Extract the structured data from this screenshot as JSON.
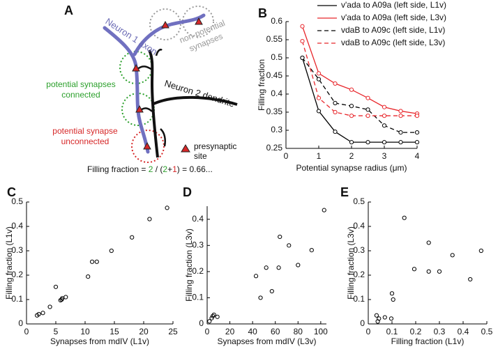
{
  "diagram": {
    "panel": "A",
    "neuron1": "Neuron 1 axon",
    "neuron2": "Neuron 2 dendrite",
    "non_potential": [
      "non-potential",
      "synapses"
    ],
    "potential_connected": [
      "potential synapses",
      "connected"
    ],
    "potential_unconnected": [
      "potential synapse",
      "unconnected"
    ],
    "presynaptic": [
      "presynaptic",
      "site"
    ],
    "formula": [
      {
        "text": "Filling fraction = "
      },
      {
        "text": "2",
        "color": "#2ca02c"
      },
      {
        "text": " / ("
      },
      {
        "text": "2",
        "color": "#2ca02c"
      },
      {
        "text": "+"
      },
      {
        "text": "1",
        "color": "#d62728"
      },
      {
        "text": ") = 0.66..."
      }
    ]
  },
  "chart_data": [
    {
      "type": "line",
      "panel": "B",
      "ylabel": "Filling fraction",
      "xlabel": "Potential synapse radius (μm)",
      "x": [
        0.5,
        1,
        1.5,
        2,
        2.5,
        3,
        3.5,
        4
      ],
      "series": [
        {
          "name": "v'ada to A09a (left side, L1v)",
          "color": "#000000",
          "dashed": false,
          "values": [
            0.5,
            0.353,
            0.296,
            0.267,
            0.267,
            0.267,
            0.267,
            0.267
          ]
        },
        {
          "name": "v'ada to A09a (left side, L3v)",
          "color": "#e8262b",
          "dashed": false,
          "values": [
            0.587,
            0.457,
            0.429,
            0.412,
            0.389,
            0.364,
            0.353,
            0.346
          ]
        },
        {
          "name": "vdaB to A09c (left side, L1v)",
          "color": "#000000",
          "dashed": true,
          "values": [
            0.5,
            0.441,
            0.375,
            0.367,
            0.357,
            0.313,
            0.294,
            0.294
          ]
        },
        {
          "name": "vdaB to A09c (left side, L3v)",
          "color": "#e8262b",
          "dashed": true,
          "values": [
            0.546,
            0.389,
            0.35,
            0.34,
            0.34,
            0.34,
            0.34,
            0.34
          ]
        }
      ],
      "xlim": [
        0,
        4
      ],
      "xticks": [
        0,
        1,
        2,
        3,
        4
      ],
      "ylim": [
        0.25,
        0.6
      ],
      "yticks": [
        0.25,
        0.3,
        0.35,
        0.4,
        0.45,
        0.5,
        0.55,
        0.6
      ],
      "legend": "top-right"
    },
    {
      "type": "scatter",
      "panel": "C",
      "ylabel": "Filling fraction (L1v)",
      "xlabel": "Synapses from mdIV (L1v)",
      "x": [
        1.8,
        2.1,
        2.8,
        4,
        5,
        5.8,
        6,
        6.1,
        6.7,
        10.5,
        11.2,
        12,
        14.5,
        18,
        21,
        24
      ],
      "values": [
        0.035,
        0.04,
        0.045,
        0.07,
        0.152,
        0.097,
        0.1,
        0.105,
        0.11,
        0.194,
        0.255,
        0.255,
        0.3,
        0.355,
        0.43,
        0.476
      ],
      "color": "#000000",
      "xlim": [
        0,
        25
      ],
      "xticks": [
        0,
        5,
        10,
        15,
        20,
        25
      ],
      "ylim": [
        0,
        0.5
      ],
      "yticks": [
        0,
        0.1,
        0.2,
        0.3,
        0.4,
        0.5
      ]
    },
    {
      "type": "scatter",
      "panel": "D",
      "ylabel": "Filling fraction (L3v)",
      "xlabel": "Synapses from mdIV (L3v)",
      "x": [
        2,
        4,
        5,
        6,
        9,
        43,
        47,
        52,
        57,
        63,
        64,
        72,
        80,
        92,
        103
      ],
      "values": [
        0.01,
        0.022,
        0.03,
        0.035,
        0.027,
        0.183,
        0.1,
        0.215,
        0.125,
        0.215,
        0.333,
        0.3,
        0.225,
        0.282,
        0.435
      ],
      "color": "#000000",
      "xlim": [
        0,
        105
      ],
      "xticks": [
        0,
        20,
        40,
        60,
        80,
        100
      ],
      "ylim": [
        0,
        0.45
      ],
      "yticks": [
        0,
        0.1,
        0.2,
        0.3,
        0.4
      ]
    },
    {
      "type": "scatter",
      "panel": "E",
      "ylabel": "Filling fraction (L3v)",
      "xlabel": "Filling fraction (L1v)",
      "x": [
        0.035,
        0.04,
        0.045,
        0.07,
        0.097,
        0.1,
        0.105,
        0.152,
        0.194,
        0.255,
        0.255,
        0.3,
        0.355,
        0.43,
        0.476
      ],
      "values": [
        0.035,
        0.01,
        0.022,
        0.027,
        0.022,
        0.125,
        0.1,
        0.435,
        0.225,
        0.215,
        0.333,
        0.215,
        0.282,
        0.183,
        0.3
      ],
      "color": "#000000",
      "xlim": [
        0,
        0.5
      ],
      "xticks": [
        0,
        0.1,
        0.2,
        0.3,
        0.4,
        0.5
      ],
      "ylim": [
        0,
        0.5
      ],
      "yticks": [
        0,
        0.1,
        0.2,
        0.3,
        0.4,
        0.5
      ]
    }
  ]
}
